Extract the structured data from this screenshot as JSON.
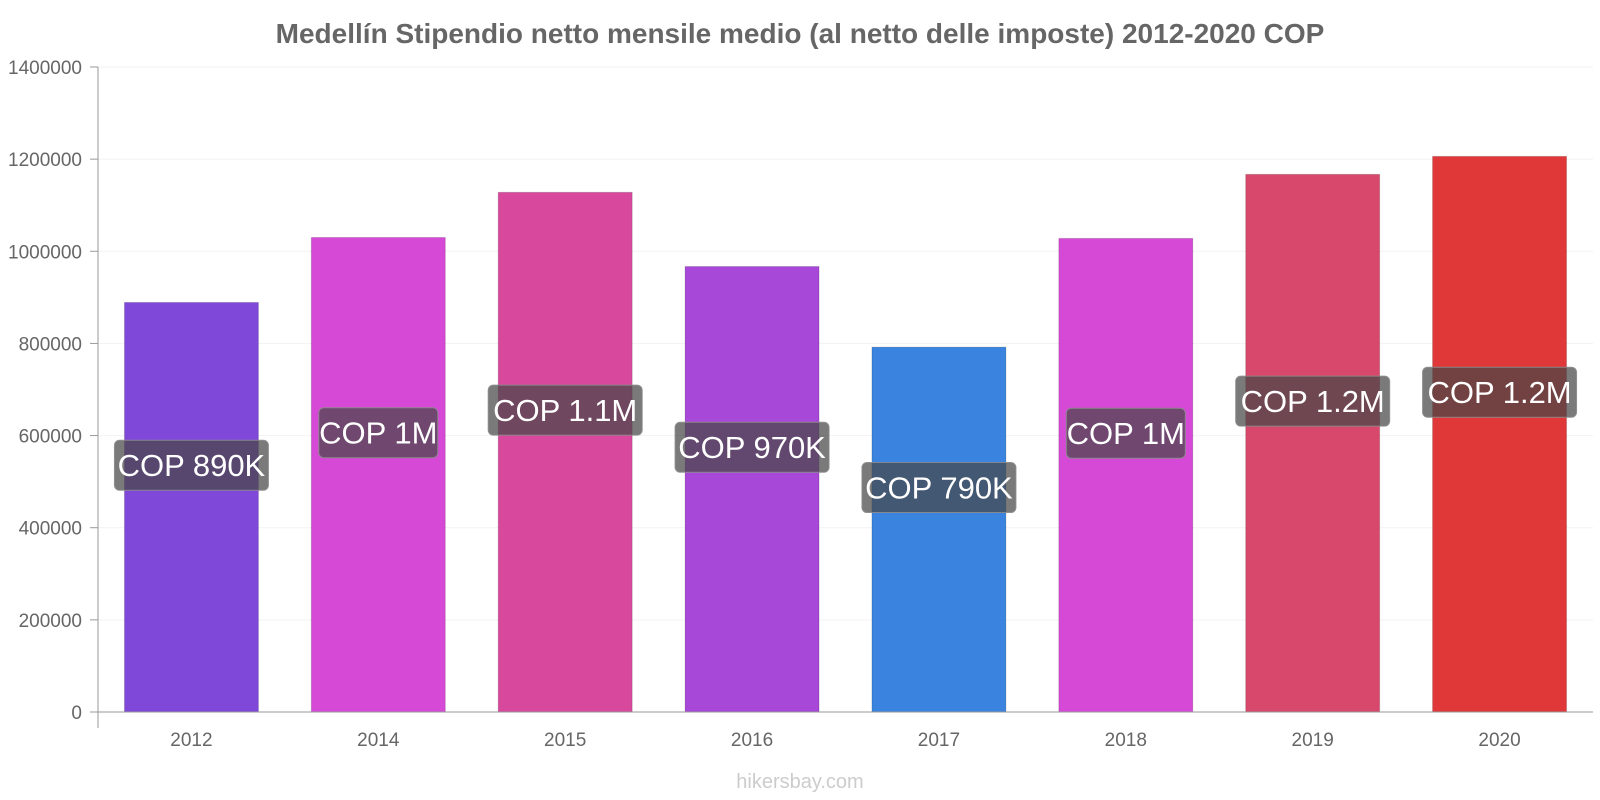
{
  "chart_data": {
    "type": "bar",
    "title": "Medellín Stipendio netto mensile medio (al netto delle imposte) 2012-2020 COP",
    "xlabel": "",
    "ylabel": "",
    "categories": [
      "2012",
      "2014",
      "2015",
      "2016",
      "2017",
      "2018",
      "2019",
      "2020"
    ],
    "values": [
      889000,
      1030000,
      1128000,
      967000,
      792000,
      1028000,
      1167000,
      1206000
    ],
    "data_labels": [
      "COP 890K",
      "COP 1M",
      "COP 1.1M",
      "COP 970K",
      "COP 790K",
      "COP 1M",
      "COP 1.2M",
      "COP 1.2M"
    ],
    "colors": [
      "#8048d8",
      "#d648d6",
      "#d8489c",
      "#a848d8",
      "#3a84e0",
      "#d648d6",
      "#d8486c",
      "#e03838"
    ],
    "yticks": [
      "0",
      "200000",
      "400000",
      "600000",
      "800000",
      "1000000",
      "1200000",
      "1400000"
    ],
    "ylim": [
      0,
      1400000
    ],
    "grid": true,
    "legend": "none"
  },
  "footer": {
    "source": "hikersbay.com"
  }
}
